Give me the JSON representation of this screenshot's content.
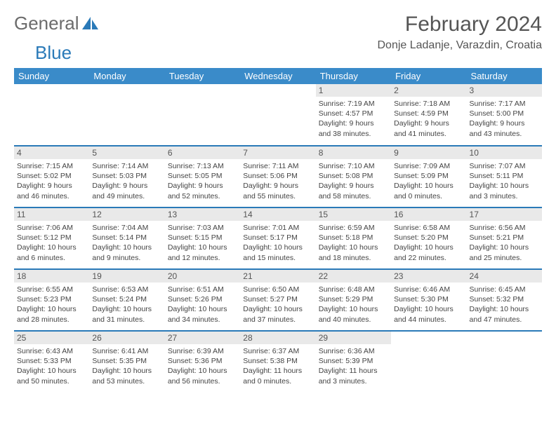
{
  "logo": {
    "word1": "General",
    "word2": "Blue"
  },
  "title": "February 2024",
  "location": "Donje Ladanje, Varazdin, Croatia",
  "header_bg": "#3a8bc9",
  "divider_color": "#2a7ab8",
  "daynum_bg": "#e9e9e9",
  "days": [
    "Sunday",
    "Monday",
    "Tuesday",
    "Wednesday",
    "Thursday",
    "Friday",
    "Saturday"
  ],
  "weeks": [
    [
      null,
      null,
      null,
      null,
      {
        "n": "1",
        "sr": "Sunrise: 7:19 AM",
        "ss": "Sunset: 4:57 PM",
        "d1": "Daylight: 9 hours",
        "d2": "and 38 minutes."
      },
      {
        "n": "2",
        "sr": "Sunrise: 7:18 AM",
        "ss": "Sunset: 4:59 PM",
        "d1": "Daylight: 9 hours",
        "d2": "and 41 minutes."
      },
      {
        "n": "3",
        "sr": "Sunrise: 7:17 AM",
        "ss": "Sunset: 5:00 PM",
        "d1": "Daylight: 9 hours",
        "d2": "and 43 minutes."
      }
    ],
    [
      {
        "n": "4",
        "sr": "Sunrise: 7:15 AM",
        "ss": "Sunset: 5:02 PM",
        "d1": "Daylight: 9 hours",
        "d2": "and 46 minutes."
      },
      {
        "n": "5",
        "sr": "Sunrise: 7:14 AM",
        "ss": "Sunset: 5:03 PM",
        "d1": "Daylight: 9 hours",
        "d2": "and 49 minutes."
      },
      {
        "n": "6",
        "sr": "Sunrise: 7:13 AM",
        "ss": "Sunset: 5:05 PM",
        "d1": "Daylight: 9 hours",
        "d2": "and 52 minutes."
      },
      {
        "n": "7",
        "sr": "Sunrise: 7:11 AM",
        "ss": "Sunset: 5:06 PM",
        "d1": "Daylight: 9 hours",
        "d2": "and 55 minutes."
      },
      {
        "n": "8",
        "sr": "Sunrise: 7:10 AM",
        "ss": "Sunset: 5:08 PM",
        "d1": "Daylight: 9 hours",
        "d2": "and 58 minutes."
      },
      {
        "n": "9",
        "sr": "Sunrise: 7:09 AM",
        "ss": "Sunset: 5:09 PM",
        "d1": "Daylight: 10 hours",
        "d2": "and 0 minutes."
      },
      {
        "n": "10",
        "sr": "Sunrise: 7:07 AM",
        "ss": "Sunset: 5:11 PM",
        "d1": "Daylight: 10 hours",
        "d2": "and 3 minutes."
      }
    ],
    [
      {
        "n": "11",
        "sr": "Sunrise: 7:06 AM",
        "ss": "Sunset: 5:12 PM",
        "d1": "Daylight: 10 hours",
        "d2": "and 6 minutes."
      },
      {
        "n": "12",
        "sr": "Sunrise: 7:04 AM",
        "ss": "Sunset: 5:14 PM",
        "d1": "Daylight: 10 hours",
        "d2": "and 9 minutes."
      },
      {
        "n": "13",
        "sr": "Sunrise: 7:03 AM",
        "ss": "Sunset: 5:15 PM",
        "d1": "Daylight: 10 hours",
        "d2": "and 12 minutes."
      },
      {
        "n": "14",
        "sr": "Sunrise: 7:01 AM",
        "ss": "Sunset: 5:17 PM",
        "d1": "Daylight: 10 hours",
        "d2": "and 15 minutes."
      },
      {
        "n": "15",
        "sr": "Sunrise: 6:59 AM",
        "ss": "Sunset: 5:18 PM",
        "d1": "Daylight: 10 hours",
        "d2": "and 18 minutes."
      },
      {
        "n": "16",
        "sr": "Sunrise: 6:58 AM",
        "ss": "Sunset: 5:20 PM",
        "d1": "Daylight: 10 hours",
        "d2": "and 22 minutes."
      },
      {
        "n": "17",
        "sr": "Sunrise: 6:56 AM",
        "ss": "Sunset: 5:21 PM",
        "d1": "Daylight: 10 hours",
        "d2": "and 25 minutes."
      }
    ],
    [
      {
        "n": "18",
        "sr": "Sunrise: 6:55 AM",
        "ss": "Sunset: 5:23 PM",
        "d1": "Daylight: 10 hours",
        "d2": "and 28 minutes."
      },
      {
        "n": "19",
        "sr": "Sunrise: 6:53 AM",
        "ss": "Sunset: 5:24 PM",
        "d1": "Daylight: 10 hours",
        "d2": "and 31 minutes."
      },
      {
        "n": "20",
        "sr": "Sunrise: 6:51 AM",
        "ss": "Sunset: 5:26 PM",
        "d1": "Daylight: 10 hours",
        "d2": "and 34 minutes."
      },
      {
        "n": "21",
        "sr": "Sunrise: 6:50 AM",
        "ss": "Sunset: 5:27 PM",
        "d1": "Daylight: 10 hours",
        "d2": "and 37 minutes."
      },
      {
        "n": "22",
        "sr": "Sunrise: 6:48 AM",
        "ss": "Sunset: 5:29 PM",
        "d1": "Daylight: 10 hours",
        "d2": "and 40 minutes."
      },
      {
        "n": "23",
        "sr": "Sunrise: 6:46 AM",
        "ss": "Sunset: 5:30 PM",
        "d1": "Daylight: 10 hours",
        "d2": "and 44 minutes."
      },
      {
        "n": "24",
        "sr": "Sunrise: 6:45 AM",
        "ss": "Sunset: 5:32 PM",
        "d1": "Daylight: 10 hours",
        "d2": "and 47 minutes."
      }
    ],
    [
      {
        "n": "25",
        "sr": "Sunrise: 6:43 AM",
        "ss": "Sunset: 5:33 PM",
        "d1": "Daylight: 10 hours",
        "d2": "and 50 minutes."
      },
      {
        "n": "26",
        "sr": "Sunrise: 6:41 AM",
        "ss": "Sunset: 5:35 PM",
        "d1": "Daylight: 10 hours",
        "d2": "and 53 minutes."
      },
      {
        "n": "27",
        "sr": "Sunrise: 6:39 AM",
        "ss": "Sunset: 5:36 PM",
        "d1": "Daylight: 10 hours",
        "d2": "and 56 minutes."
      },
      {
        "n": "28",
        "sr": "Sunrise: 6:37 AM",
        "ss": "Sunset: 5:38 PM",
        "d1": "Daylight: 11 hours",
        "d2": "and 0 minutes."
      },
      {
        "n": "29",
        "sr": "Sunrise: 6:36 AM",
        "ss": "Sunset: 5:39 PM",
        "d1": "Daylight: 11 hours",
        "d2": "and 3 minutes."
      },
      null,
      null
    ]
  ]
}
